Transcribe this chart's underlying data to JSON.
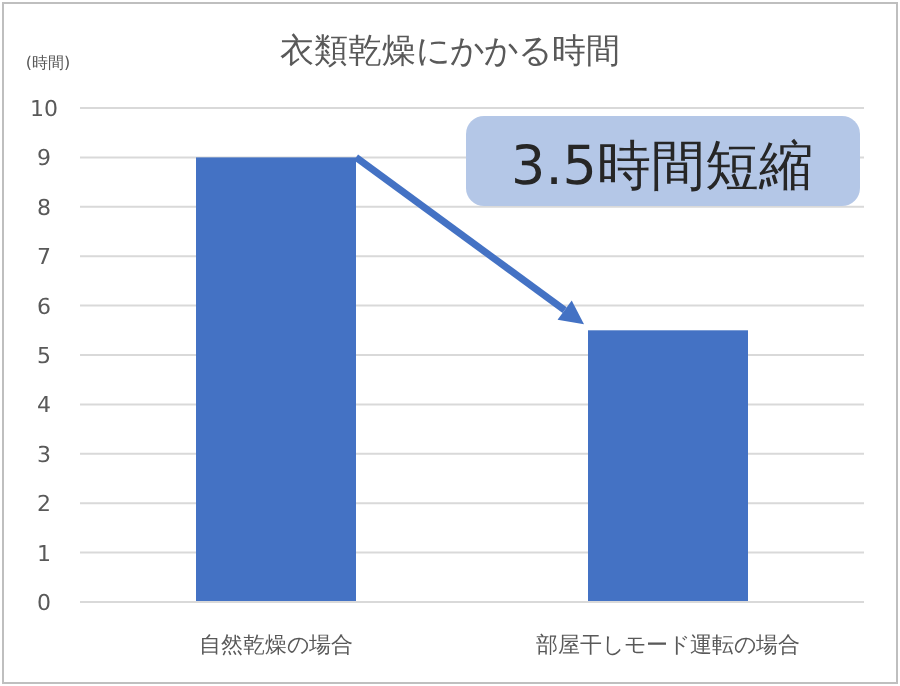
{
  "chart_data": {
    "type": "bar",
    "title": "衣類乾燥にかかる時間",
    "ylabel": "(時間)",
    "categories": [
      "自然乾燥の場合",
      "部屋干しモード運転の場合"
    ],
    "values": [
      9,
      5.5
    ],
    "color": "#4472c4",
    "ylim": [
      0,
      10
    ],
    "yticks": [
      0,
      1,
      2,
      3,
      4,
      5,
      6,
      7,
      8,
      9,
      10
    ],
    "grid": "y",
    "annotations": [
      "3.5時間短縮"
    ]
  }
}
